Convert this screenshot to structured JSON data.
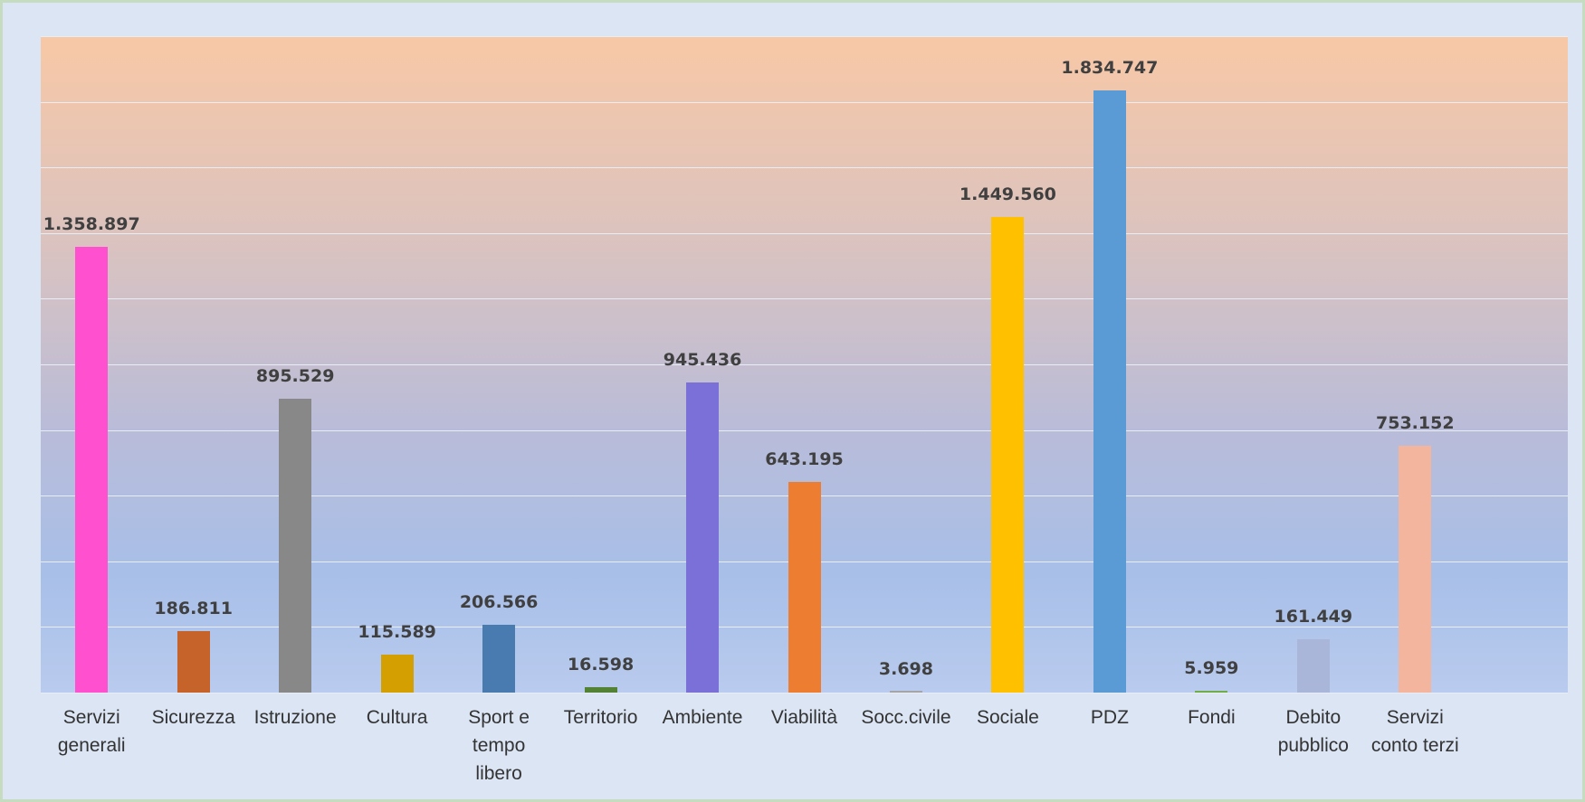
{
  "chart_data": {
    "type": "bar",
    "categories": [
      "Servizi generali",
      "Sicurezza",
      "Istruzione",
      "Cultura",
      "Sport e tempo libero",
      "Territorio",
      "Ambiente",
      "Viabilità",
      "Socc.civile",
      "Sociale",
      "PDZ",
      "Fondi",
      "Debito pubblico",
      "Servizi conto terzi"
    ],
    "values": [
      1358897,
      186811,
      895529,
      115589,
      206566,
      16598,
      945436,
      643195,
      3698,
      1449560,
      1834747,
      5959,
      161449,
      753152
    ],
    "value_labels": [
      "1.358.897",
      "186.811",
      "895.529",
      "115.589",
      "206.566",
      "16.598",
      "945.436",
      "643.195",
      "3.698",
      "1.449.560",
      "1.834.747",
      "5.959",
      "161.449",
      "753.152"
    ],
    "colors": [
      "#ff50d0",
      "#c5632b",
      "#888888",
      "#d49f00",
      "#4a7bb0",
      "#548235",
      "#7b6fd8",
      "#ed7d31",
      "#a5a5a5",
      "#ffc000",
      "#5b9bd5",
      "#70ad47",
      "#a9b5d9",
      "#f4b59e"
    ],
    "ylim": [
      0,
      2000000
    ],
    "yticks": [
      0,
      200000,
      400000,
      600000,
      800000,
      1000000,
      1200000,
      1400000,
      1600000,
      1800000,
      2000000
    ],
    "grid": true
  }
}
